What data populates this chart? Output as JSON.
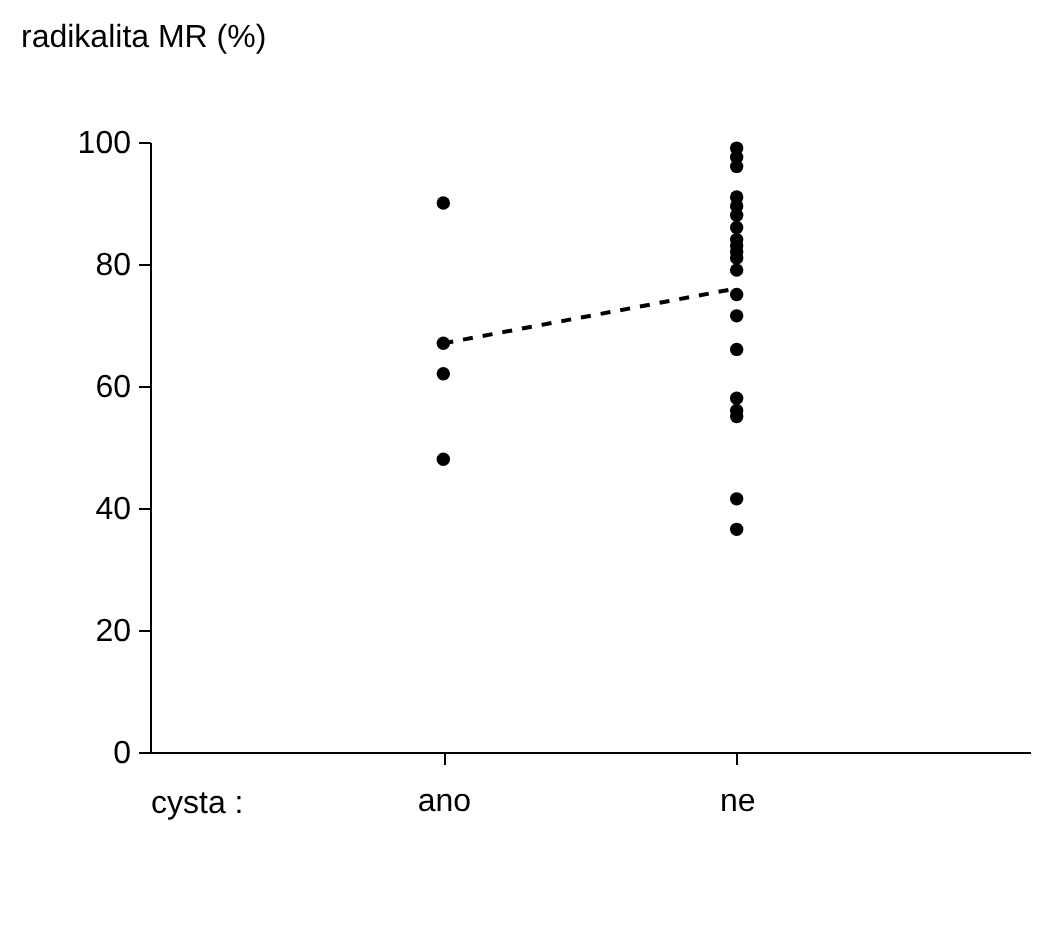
{
  "chart_data": {
    "type": "scatter",
    "ylabel": "radikalita MR (%)",
    "xlabel": "cysta :",
    "categories": [
      "ano",
      "ne"
    ],
    "series": [
      {
        "color": "#000000",
        "marker": "circle",
        "x": [
          "ano",
          "ano",
          "ano",
          "ano",
          "ne",
          "ne",
          "ne",
          "ne",
          "ne",
          "ne",
          "ne",
          "ne",
          "ne",
          "ne",
          "ne",
          "ne",
          "ne",
          "ne",
          "ne",
          "ne",
          "ne",
          "ne",
          "ne",
          "ne"
        ],
        "values": [
          90,
          67,
          62,
          48,
          99,
          97.5,
          96,
          91,
          89.5,
          88,
          86,
          84,
          83,
          82,
          81,
          79,
          75,
          71.5,
          66,
          58,
          56,
          55,
          41.5,
          36.5
        ]
      },
      {
        "type": "line",
        "color": "#000000",
        "line_style": "dashed",
        "x": [
          "ano",
          "ne"
        ],
        "values": [
          67,
          76
        ]
      }
    ],
    "ylim": [
      0,
      100
    ],
    "yticks": [
      0,
      20,
      40,
      60,
      80,
      100
    ]
  }
}
